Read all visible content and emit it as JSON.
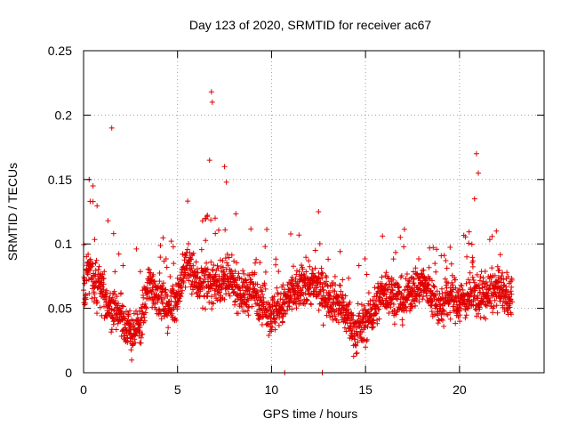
{
  "chart_data": {
    "type": "scatter",
    "title": "Day 123 of 2020, SRMTID for receiver ac67",
    "xlabel": "GPS time / hours",
    "ylabel": "SRMTID / TECUs",
    "xlim": [
      0,
      24.5
    ],
    "ylim": [
      0,
      0.25
    ],
    "xticks": [
      0,
      5,
      10,
      15,
      20
    ],
    "xtick_labels": [
      "0",
      "5",
      "10",
      "15",
      "20"
    ],
    "yticks": [
      0,
      0.05,
      0.1,
      0.15,
      0.2,
      0.25
    ],
    "ytick_labels": [
      "0",
      "0.05",
      "0.1",
      "0.15",
      "0.2",
      "0.25"
    ],
    "grid": true,
    "marker": "+",
    "color": "#e00000",
    "series": [
      {
        "name": "SRMTID",
        "description": "dense scatter of points, ~30 s cadence, 0 to 22.8 h",
        "sample_points": [
          [
            0.1,
            0.06
          ],
          [
            0.2,
            0.085
          ],
          [
            0.3,
            0.15
          ],
          [
            0.35,
            0.133
          ],
          [
            0.5,
            0.145
          ],
          [
            0.6,
            0.07
          ],
          [
            0.9,
            0.065
          ],
          [
            1.2,
            0.055
          ],
          [
            1.3,
            0.118
          ],
          [
            1.5,
            0.19
          ],
          [
            1.6,
            0.108
          ],
          [
            2.0,
            0.045
          ],
          [
            2.5,
            0.03
          ],
          [
            3.0,
            0.035
          ],
          [
            3.5,
            0.07
          ],
          [
            4.0,
            0.06
          ],
          [
            4.5,
            0.05
          ],
          [
            5.0,
            0.06
          ],
          [
            5.5,
            0.085
          ],
          [
            6.0,
            0.07
          ],
          [
            6.5,
            0.12
          ],
          [
            6.7,
            0.165
          ],
          [
            6.8,
            0.218
          ],
          [
            6.85,
            0.21
          ],
          [
            7.0,
            0.12
          ],
          [
            7.5,
            0.16
          ],
          [
            7.6,
            0.148
          ],
          [
            8.0,
            0.07
          ],
          [
            8.5,
            0.06
          ],
          [
            9.0,
            0.065
          ],
          [
            9.5,
            0.055
          ],
          [
            10.0,
            0.045
          ],
          [
            10.5,
            0.05
          ],
          [
            10.7,
            0.0
          ],
          [
            11.0,
            0.06
          ],
          [
            11.5,
            0.065
          ],
          [
            12.0,
            0.07
          ],
          [
            12.5,
            0.125
          ],
          [
            12.7,
            0.0
          ],
          [
            13.0,
            0.06
          ],
          [
            13.5,
            0.055
          ],
          [
            14.0,
            0.045
          ],
          [
            14.5,
            0.03
          ],
          [
            15.0,
            0.04
          ],
          [
            15.5,
            0.05
          ],
          [
            16.0,
            0.065
          ],
          [
            16.5,
            0.06
          ],
          [
            17.0,
            0.055
          ],
          [
            17.5,
            0.065
          ],
          [
            18.0,
            0.07
          ],
          [
            18.5,
            0.06
          ],
          [
            19.0,
            0.05
          ],
          [
            19.5,
            0.06
          ],
          [
            20.0,
            0.055
          ],
          [
            20.5,
            0.06
          ],
          [
            20.8,
            0.135
          ],
          [
            20.9,
            0.17
          ],
          [
            21.0,
            0.155
          ],
          [
            21.5,
            0.06
          ],
          [
            22.0,
            0.065
          ],
          [
            22.5,
            0.06
          ],
          [
            22.8,
            0.055
          ]
        ]
      }
    ]
  }
}
